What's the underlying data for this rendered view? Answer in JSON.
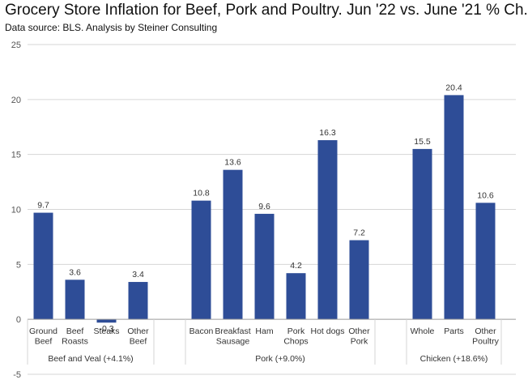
{
  "chart_data": {
    "type": "bar",
    "title": "Grocery Store Inflation for Beef, Pork and Poultry.  Jun '22 vs. June '21 % Ch.",
    "subtitle": "Data source: BLS.  Analysis by Steiner Consulting",
    "xlabel": "",
    "ylabel": "",
    "ylim": [
      -5,
      25
    ],
    "yticks": [
      -5,
      0,
      5,
      10,
      15,
      20,
      25
    ],
    "grid": true,
    "bar_color": "#2e4d97",
    "groups": [
      {
        "label": "Beef and Veal (+4.1%)",
        "categories": [
          {
            "label": [
              "Ground",
              "Beef"
            ],
            "value": 9.7,
            "value_label": "9.7"
          },
          {
            "label": [
              "Beef",
              "Roasts"
            ],
            "value": 3.6,
            "value_label": "3.6"
          },
          {
            "label": [
              "Steaks"
            ],
            "value": -0.3,
            "value_label": "-0.3"
          },
          {
            "label": [
              "Other",
              "Beef"
            ],
            "value": 3.4,
            "value_label": "3.4"
          }
        ]
      },
      {
        "label": "Pork (+9.0%)",
        "categories": [
          {
            "label": [
              "Bacon"
            ],
            "value": 10.8,
            "value_label": "10.8"
          },
          {
            "label": [
              "Breakfast",
              "Sausage"
            ],
            "value": 13.6,
            "value_label": "13.6"
          },
          {
            "label": [
              "Ham"
            ],
            "value": 9.6,
            "value_label": "9.6"
          },
          {
            "label": [
              "Pork",
              "Chops"
            ],
            "value": 4.2,
            "value_label": "4.2"
          },
          {
            "label": [
              "Hot dogs"
            ],
            "value": 16.3,
            "value_label": "16.3"
          },
          {
            "label": [
              "Other",
              "Pork"
            ],
            "value": 7.2,
            "value_label": "7.2"
          }
        ]
      },
      {
        "label": "Chicken (+18.6%)",
        "categories": [
          {
            "label": [
              "Whole"
            ],
            "value": 15.5,
            "value_label": "15.5"
          },
          {
            "label": [
              "Parts"
            ],
            "value": 20.4,
            "value_label": "20.4"
          },
          {
            "label": [
              "Other",
              "Poultry"
            ],
            "value": 10.6,
            "value_label": "10.6"
          }
        ]
      }
    ]
  }
}
